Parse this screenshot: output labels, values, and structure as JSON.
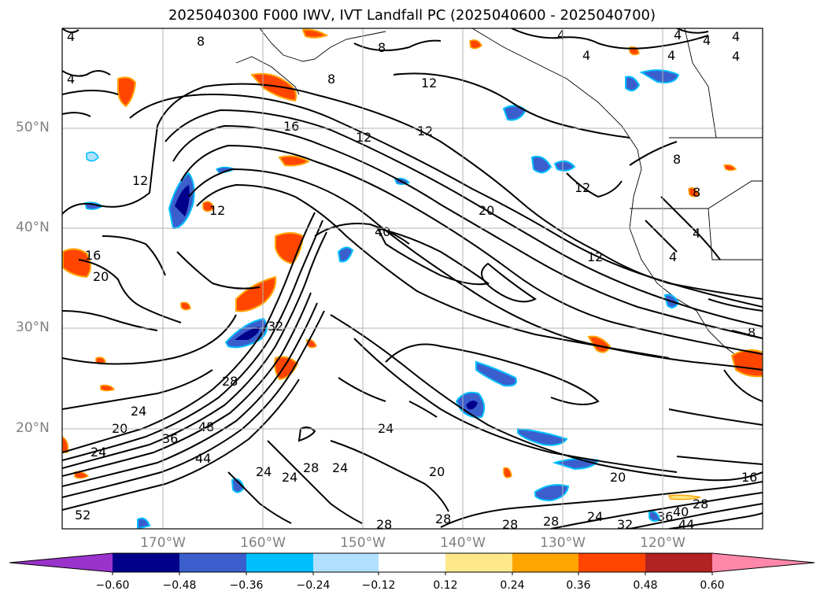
{
  "title": "2025040300 F000 IWV, IVT Landfall PC (2025040600 - 2025040700)",
  "lat_labels": [
    "50°N",
    "40°N",
    "30°N",
    "20°N"
  ],
  "lon_labels": [
    "170°W",
    "160°W",
    "150°W",
    "140°W",
    "130°W",
    "120°W"
  ],
  "colorbar": {
    "ticks": [
      "−0.60",
      "−0.48",
      "−0.36",
      "−0.24",
      "−0.12",
      "0.12",
      "0.24",
      "0.36",
      "0.48",
      "0.60"
    ],
    "under_color": "#9933cc",
    "over_color": "#ff88aa",
    "colors": [
      "#00008b",
      "#3a5fcd",
      "#00bfff",
      "#b0e0ff",
      "#ffffff",
      "#ffe88a",
      "#ffa500",
      "#ff4500",
      "#b22222"
    ]
  },
  "contour_labels": [
    "4",
    "8",
    "12",
    "16",
    "20",
    "24",
    "28",
    "32",
    "36",
    "40",
    "44",
    "48",
    "52"
  ],
  "colors": {
    "grid": "#b3b3b3",
    "contour": "#000000",
    "axis_label": "#808080",
    "neg_dark": "#00008b",
    "neg_mid": "#3a5fcd",
    "neg_light": "#00bfff",
    "pos_light": "#ffa500",
    "pos_mid": "#ff4500",
    "pos_yellow": "#ffe88a"
  }
}
